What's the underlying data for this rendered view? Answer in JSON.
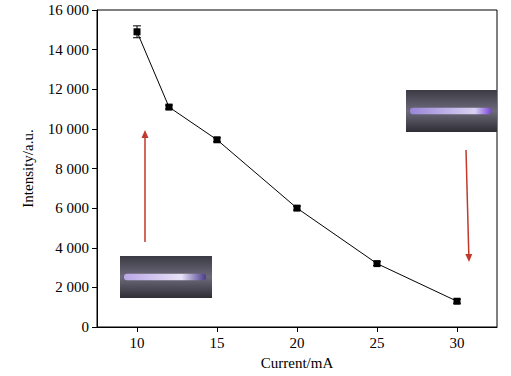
{
  "chart_data": {
    "type": "line",
    "x_label": "Current/mA",
    "y_label": "Intensity/a.u.",
    "x": [
      10,
      12,
      15,
      20,
      25,
      30
    ],
    "values": [
      14900,
      11100,
      9450,
      6000,
      3200,
      1300
    ],
    "errors": [
      300,
      100,
      100,
      100,
      100,
      100
    ],
    "color": "#000000",
    "marker": "square",
    "line_style": "solid",
    "xlim": [
      7.5,
      32.5
    ],
    "xticks": [
      10,
      15,
      20,
      25,
      30
    ],
    "ylim": [
      0,
      16000
    ],
    "yticks": [
      0,
      {
        "value": 2000,
        "label": "2 000"
      },
      {
        "value": 4000,
        "label": "4 000"
      },
      {
        "value": 6000,
        "label": "6 000"
      },
      {
        "value": 8000,
        "label": "8 000"
      },
      {
        "value": 10000,
        "label": "10 000"
      },
      {
        "value": 12000,
        "label": "12 000"
      },
      {
        "value": 14000,
        "label": "14 000"
      },
      {
        "value": 16000,
        "label": "16 000"
      }
    ],
    "grid": false
  }
}
